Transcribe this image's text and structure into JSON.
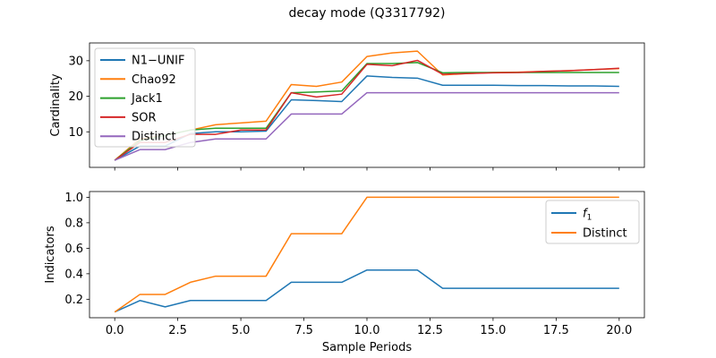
{
  "title": "decay mode (Q3317792)",
  "chart_data": [
    {
      "type": "line",
      "ylabel": "Cardinality",
      "xlabel": "",
      "xlim": [
        -1,
        21
      ],
      "ylim": [
        0,
        35
      ],
      "yticks": [
        10,
        20,
        30
      ],
      "grid": false,
      "legend_position": "upper-left",
      "x": [
        0,
        1,
        2,
        3,
        4,
        5,
        6,
        7,
        8,
        9,
        10,
        11,
        12,
        13,
        14,
        15,
        16,
        17,
        18,
        19,
        20
      ],
      "series": [
        {
          "name": "N1−UNIF",
          "color": "#1f77b4",
          "values": [
            2,
            6,
            6,
            9.5,
            10,
            10,
            10.2,
            19,
            18.8,
            18.5,
            25.7,
            25.3,
            25.1,
            23.1,
            23.1,
            23.1,
            23,
            23,
            22.9,
            22.9,
            22.8
          ]
        },
        {
          "name": "Chao92",
          "color": "#ff7f0e",
          "values": [
            2,
            8,
            9,
            10.5,
            12,
            12.5,
            13,
            23.3,
            22.8,
            24,
            31.2,
            32.2,
            32.7,
            26,
            26.4,
            26.7,
            26.8,
            27,
            27.2,
            27.5,
            27.8
          ]
        },
        {
          "name": "Jack1",
          "color": "#2ca02c",
          "values": [
            2,
            7.5,
            9,
            10.5,
            11,
            11,
            11,
            21,
            21.2,
            21.5,
            29.2,
            29.2,
            29.5,
            26.6,
            26.7,
            26.7,
            26.7,
            26.7,
            26.7,
            26.7,
            26.7
          ]
        },
        {
          "name": "SOR",
          "color": "#d62728",
          "values": [
            2,
            7,
            7,
            9.3,
            9.3,
            10.5,
            10.5,
            21,
            19.8,
            20.6,
            29,
            28.6,
            30.1,
            26.2,
            26.4,
            26.6,
            26.7,
            27,
            27.2,
            27.5,
            27.9
          ]
        },
        {
          "name": "Distinct",
          "color": "#9467bd",
          "values": [
            2,
            5,
            5,
            7,
            8,
            8,
            8,
            15,
            15,
            15,
            21,
            21,
            21,
            21,
            21,
            21,
            21,
            21,
            21,
            21,
            21
          ]
        }
      ]
    },
    {
      "type": "line",
      "ylabel": "Indicators",
      "xlabel": "Sample Periods",
      "xlim": [
        -1,
        21
      ],
      "ylim": [
        0.055,
        1.045
      ],
      "yticks": [
        0.2,
        0.4,
        0.6,
        0.8,
        1.0
      ],
      "xticks": [
        0,
        2.5,
        5,
        7.5,
        10,
        12.5,
        15,
        17.5,
        20
      ],
      "xtick_labels": [
        "0.0",
        "2.5",
        "5.0",
        "7.5",
        "10.0",
        "12.5",
        "15.0",
        "17.5",
        "20.0"
      ],
      "ytick_labels": [
        "0.2",
        "0.4",
        "0.6",
        "0.8",
        "1.0"
      ],
      "grid": false,
      "legend_position": "upper-right",
      "x": [
        0,
        1,
        2,
        3,
        4,
        5,
        6,
        7,
        8,
        9,
        10,
        11,
        12,
        13,
        14,
        15,
        16,
        17,
        18,
        19,
        20
      ],
      "series": [
        {
          "name": "f1",
          "label_main": "f",
          "label_sub": "1",
          "color": "#1f77b4",
          "values": [
            0.1,
            0.19,
            0.14,
            0.19,
            0.19,
            0.19,
            0.19,
            0.333,
            0.333,
            0.333,
            0.429,
            0.429,
            0.429,
            0.286,
            0.286,
            0.286,
            0.286,
            0.286,
            0.286,
            0.286,
            0.286
          ]
        },
        {
          "name": "Distinct",
          "color": "#ff7f0e",
          "values": [
            0.1,
            0.238,
            0.238,
            0.333,
            0.381,
            0.381,
            0.381,
            0.714,
            0.714,
            0.714,
            1,
            1,
            1,
            1,
            1,
            1,
            1,
            1,
            1,
            1,
            1
          ]
        }
      ]
    }
  ]
}
